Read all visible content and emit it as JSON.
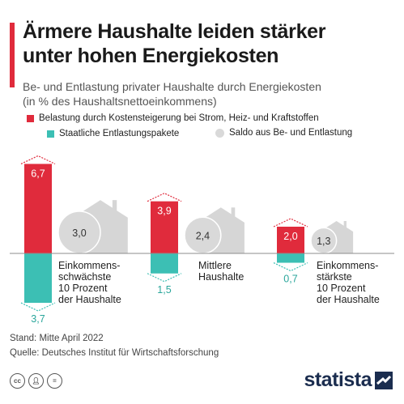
{
  "header": {
    "title_line1": "Ärmere Haushalte leiden stärker",
    "title_line2": "unter hohen Energiekosten",
    "subtitle_line1": "Be- und Entlastung privater Haushalte durch Energiekosten",
    "subtitle_line2": "(in % des Haushaltsnettoeinkommens)"
  },
  "legend": {
    "belastung": "Belastung durch Kostensteigerung bei Strom, Heiz- und Kraftstoffen",
    "entlastung": "Staatliche Entlastungspakete",
    "saldo": "Saldo aus Be- und Entlastung"
  },
  "colors": {
    "belastung": "#e02b3c",
    "entlastung": "#3cbfb4",
    "saldo": "#d9d9d9",
    "house": "#d6d6d6",
    "accent": "#e02b3c"
  },
  "chart_data": {
    "type": "bar",
    "categories": [
      [
        "Einkommens-",
        "schwächste",
        "10 Prozent",
        "der Haushalte"
      ],
      [
        "Mittlere",
        "Haushalte"
      ],
      [
        "Einkommens-",
        "stärkste",
        "10 Prozent",
        "der Haushalte"
      ]
    ],
    "series": [
      {
        "name": "Belastung durch Kostensteigerung bei Strom, Heiz- und Kraftstoffen",
        "values": [
          6.7,
          3.9,
          2.0
        ],
        "labels": [
          "6,7",
          "3,9",
          "2,0"
        ]
      },
      {
        "name": "Staatliche Entlastungspakete",
        "values": [
          -3.7,
          -1.5,
          -0.7
        ],
        "labels": [
          "3,7",
          "1,5",
          "0,7"
        ]
      },
      {
        "name": "Saldo aus Be- und Entlastung",
        "values": [
          3.0,
          2.4,
          1.3
        ],
        "labels": [
          "3,0",
          "2,4",
          "1,3"
        ]
      }
    ],
    "grid": false
  },
  "footer": {
    "stand": "Stand: Mitte April 2022",
    "quelle": "Quelle: Deutsches Institut für Wirtschaftsforschung"
  },
  "license_icons": [
    "cc-icon",
    "person-icon",
    "equals-icon"
  ],
  "logo": {
    "text": "statista"
  }
}
